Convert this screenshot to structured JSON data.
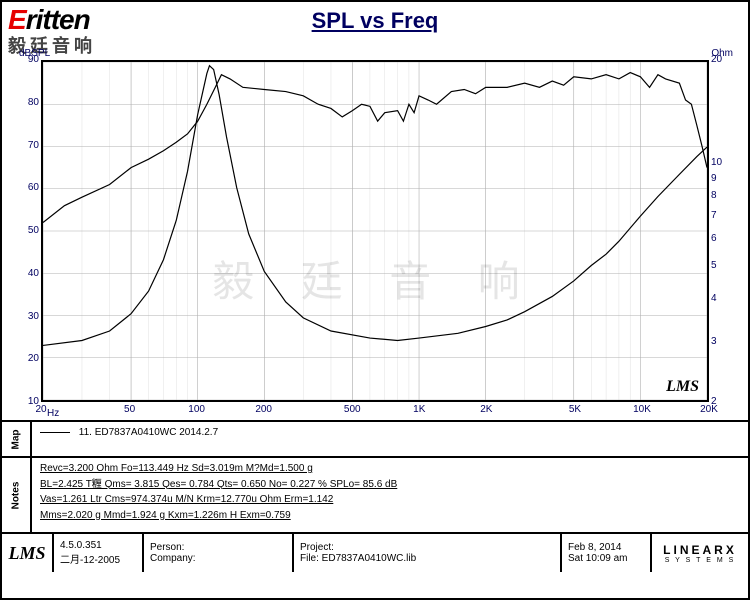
{
  "logo": {
    "brand_full": "Eritten",
    "subtitle": "毅廷音响"
  },
  "title": "SPL vs Freq",
  "watermark": "毅 廷 音 响",
  "chart": {
    "type": "line",
    "stroke_color": "#000000",
    "stroke_width": 1.2,
    "grid_color_major": "#b0b0b0",
    "grid_color_minor": "#d8d8d8",
    "grid_width_major": 0.6,
    "grid_width_minor": 0.4,
    "background_color": "#ffffff",
    "label_color": "#000060",
    "label_fontsize": 10,
    "x": {
      "scale": "log",
      "min": 20,
      "max": 20000,
      "unit": "Hz",
      "ticks": [
        20,
        50,
        100,
        200,
        500,
        1000,
        2000,
        5000,
        10000,
        20000
      ],
      "tick_labels": [
        "20",
        "50",
        "100",
        "200",
        "500",
        "1K",
        "2K",
        "5K",
        "10K",
        "20K"
      ]
    },
    "y_left": {
      "scale": "linear",
      "min": 10,
      "max": 90,
      "unit": "dBSPL",
      "ticks": [
        10,
        20,
        30,
        40,
        50,
        60,
        70,
        80,
        90
      ]
    },
    "y_right": {
      "scale": "log",
      "min": 2,
      "max": 20,
      "unit": "Ohm",
      "ticks": [
        2,
        3,
        4,
        5,
        6,
        7,
        8,
        9,
        10,
        20
      ]
    },
    "lms_tag": "LMS",
    "spl_curve": [
      [
        20,
        52
      ],
      [
        25,
        56
      ],
      [
        30,
        58
      ],
      [
        40,
        61
      ],
      [
        50,
        65
      ],
      [
        60,
        67
      ],
      [
        70,
        69
      ],
      [
        80,
        71
      ],
      [
        90,
        73
      ],
      [
        100,
        76
      ],
      [
        110,
        80
      ],
      [
        120,
        84
      ],
      [
        128,
        87
      ],
      [
        140,
        86
      ],
      [
        160,
        84
      ],
      [
        200,
        83.5
      ],
      [
        250,
        83
      ],
      [
        300,
        82
      ],
      [
        350,
        80
      ],
      [
        400,
        79
      ],
      [
        450,
        77
      ],
      [
        500,
        78.5
      ],
      [
        550,
        80
      ],
      [
        600,
        79.5
      ],
      [
        650,
        76
      ],
      [
        700,
        78
      ],
      [
        800,
        78.5
      ],
      [
        850,
        76
      ],
      [
        900,
        80
      ],
      [
        950,
        78
      ],
      [
        1000,
        82
      ],
      [
        1100,
        81
      ],
      [
        1200,
        80
      ],
      [
        1400,
        83
      ],
      [
        1600,
        83.5
      ],
      [
        1800,
        82.5
      ],
      [
        2000,
        84
      ],
      [
        2500,
        84
      ],
      [
        3000,
        85
      ],
      [
        3500,
        84
      ],
      [
        4000,
        85.5
      ],
      [
        4500,
        84.5
      ],
      [
        5000,
        86.5
      ],
      [
        6000,
        86
      ],
      [
        7000,
        87
      ],
      [
        8000,
        86
      ],
      [
        9000,
        87.5
      ],
      [
        10000,
        86.5
      ],
      [
        11000,
        84
      ],
      [
        12000,
        87
      ],
      [
        13000,
        86
      ],
      [
        15000,
        85
      ],
      [
        16000,
        81
      ],
      [
        17000,
        80
      ],
      [
        18000,
        75
      ],
      [
        19000,
        70
      ],
      [
        20000,
        65
      ]
    ],
    "imp_curve": [
      [
        20,
        2.9
      ],
      [
        30,
        3.0
      ],
      [
        40,
        3.2
      ],
      [
        50,
        3.6
      ],
      [
        60,
        4.2
      ],
      [
        70,
        5.2
      ],
      [
        80,
        6.8
      ],
      [
        90,
        9.5
      ],
      [
        100,
        14
      ],
      [
        110,
        18.5
      ],
      [
        113,
        19.5
      ],
      [
        118,
        19
      ],
      [
        125,
        16
      ],
      [
        135,
        12
      ],
      [
        150,
        8.5
      ],
      [
        170,
        6.2
      ],
      [
        200,
        4.8
      ],
      [
        250,
        3.9
      ],
      [
        300,
        3.5
      ],
      [
        400,
        3.2
      ],
      [
        600,
        3.05
      ],
      [
        800,
        3.0
      ],
      [
        1000,
        3.05
      ],
      [
        1500,
        3.15
      ],
      [
        2000,
        3.3
      ],
      [
        2500,
        3.45
      ],
      [
        3000,
        3.65
      ],
      [
        4000,
        4.05
      ],
      [
        5000,
        4.5
      ],
      [
        6000,
        5.0
      ],
      [
        7000,
        5.4
      ],
      [
        8000,
        5.9
      ],
      [
        10000,
        7.0
      ],
      [
        12000,
        8.0
      ],
      [
        15000,
        9.3
      ],
      [
        18000,
        10.5
      ],
      [
        20000,
        11.2
      ]
    ]
  },
  "map": {
    "side": "Map",
    "legend": "11. ED7837A0410WC  2014.2.7"
  },
  "notes": {
    "side": "Notes",
    "lines": [
      "Revc=3.200 Ohm  Fo=113.449 Hz  Sd=3.019m M?Md=1.500 g",
      "BL=2.425 T糎  Qms= 3.815  Qes= 0.784  Qts= 0.650  No= 0.227 %  SPLo= 85.6 dB",
      "Vas=1.261 Ltr  Cms=974.374u M/N  Krm=12.770u Ohm  Erm=1.142",
      "Mms=2.020 g  Mmd=1.924 g  Kxm=1.226m H  Exm=0.759"
    ]
  },
  "footer": {
    "lms": "LMS",
    "version": {
      "ver": "4.5.0.351",
      "date": "二月-12-2005"
    },
    "person": {
      "label": "Person:",
      "value": ""
    },
    "company": {
      "label": "Company:",
      "value": ""
    },
    "project": {
      "label": "Project:",
      "value": ""
    },
    "file": {
      "label": "File: ",
      "value": "ED7837A0410WC.lib"
    },
    "datetime": {
      "date": "Feb  8, 2014",
      "time": "Sat 10:09 am"
    },
    "linearx": {
      "main": "LINEARX",
      "sub": "S Y S T E M S"
    }
  }
}
